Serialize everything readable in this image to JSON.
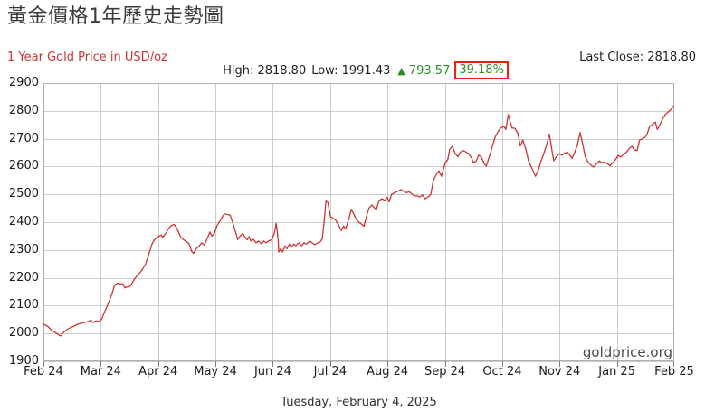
{
  "page": {
    "title": "黃金價格1年歷史走勢圖"
  },
  "header": {
    "subtitle": "1 Year Gold Price in USD/oz",
    "last_close": "Last Close: 2818.80",
    "high_text": "High: 2818.80",
    "low_text": "Low: 1991.43",
    "arrow": "▲",
    "change": "793.57",
    "percent": "39.18%"
  },
  "footer": {
    "watermark": "goldprice.org",
    "date": "Tuesday, February 4, 2025"
  },
  "colors": {
    "line": "#cc3333",
    "grid": "#cccccc",
    "border": "#b0b0b0",
    "tick": "#808080",
    "subtitle_red": "#cc3333",
    "up_green": "#2c8a2c",
    "box_red": "#ee1c0c"
  },
  "chart_data": {
    "type": "line",
    "title": "1 Year Gold Price in USD/oz",
    "ylabel": "USD/oz",
    "ylim": [
      1900,
      2900
    ],
    "y_ticks": [
      2900,
      2800,
      2700,
      2600,
      2500,
      2400,
      2300,
      2200,
      2100,
      2000,
      1900
    ],
    "x_tick_labels": [
      "Feb 24",
      "Mar 24",
      "Apr 24",
      "May 24",
      "Jun 24",
      "Jul 24",
      "Aug 24",
      "Sep 24",
      "Oct 24",
      "Nov 24",
      "Jan 25",
      "Feb 25"
    ],
    "grid": true,
    "legend": "none",
    "high": 2818.8,
    "low": 1991.43,
    "last_close": 2818.8,
    "change_abs": 793.57,
    "change_pct": 39.18,
    "series": [
      {
        "name": "Gold Price USD/oz",
        "points": [
          [
            0,
            2034
          ],
          [
            0.7,
            2025
          ],
          [
            1.3,
            2012
          ],
          [
            1.9,
            2003
          ],
          [
            2.3,
            1997
          ],
          [
            2.7,
            1991
          ],
          [
            3.2,
            2004
          ],
          [
            3.6,
            2012
          ],
          [
            4.2,
            2020
          ],
          [
            4.7,
            2025
          ],
          [
            5.3,
            2032
          ],
          [
            5.9,
            2036
          ],
          [
            6.5,
            2040
          ],
          [
            7,
            2042
          ],
          [
            7.5,
            2048
          ],
          [
            7.9,
            2039
          ],
          [
            8.3,
            2045
          ],
          [
            8.8,
            2043
          ],
          [
            9.2,
            2050
          ],
          [
            9.6,
            2072
          ],
          [
            10,
            2093
          ],
          [
            10.6,
            2126
          ],
          [
            11,
            2153
          ],
          [
            11.3,
            2175
          ],
          [
            11.8,
            2181
          ],
          [
            12.2,
            2178
          ],
          [
            12.6,
            2179
          ],
          [
            12.9,
            2164
          ],
          [
            13.3,
            2167
          ],
          [
            13.8,
            2171
          ],
          [
            14.3,
            2191
          ],
          [
            14.8,
            2207
          ],
          [
            15.4,
            2221
          ],
          [
            15.8,
            2234
          ],
          [
            16.2,
            2250
          ],
          [
            16.6,
            2278
          ],
          [
            16.9,
            2299
          ],
          [
            17.2,
            2321
          ],
          [
            17.6,
            2337
          ],
          [
            18.2,
            2348
          ],
          [
            18.7,
            2354
          ],
          [
            18.9,
            2345
          ],
          [
            19.4,
            2360
          ],
          [
            19.8,
            2376
          ],
          [
            20.2,
            2387
          ],
          [
            20.7,
            2392
          ],
          [
            21.1,
            2380
          ],
          [
            21.4,
            2365
          ],
          [
            21.8,
            2345
          ],
          [
            22.2,
            2337
          ],
          [
            22.7,
            2330
          ],
          [
            23.1,
            2322
          ],
          [
            23.5,
            2295
          ],
          [
            23.8,
            2288
          ],
          [
            24.2,
            2304
          ],
          [
            24.7,
            2315
          ],
          [
            25.1,
            2326
          ],
          [
            25.5,
            2318
          ],
          [
            26,
            2343
          ],
          [
            26.4,
            2365
          ],
          [
            26.7,
            2350
          ],
          [
            27.1,
            2360
          ],
          [
            27.5,
            2387
          ],
          [
            28,
            2405
          ],
          [
            28.4,
            2420
          ],
          [
            28.7,
            2430
          ],
          [
            29.1,
            2428
          ],
          [
            29.6,
            2425
          ],
          [
            30,
            2400
          ],
          [
            30.3,
            2375
          ],
          [
            30.6,
            2354
          ],
          [
            30.8,
            2337
          ],
          [
            31.1,
            2348
          ],
          [
            31.6,
            2360
          ],
          [
            31.9,
            2348
          ],
          [
            32.3,
            2337
          ],
          [
            32.6,
            2348
          ],
          [
            32.9,
            2332
          ],
          [
            33.3,
            2338
          ],
          [
            33.7,
            2326
          ],
          [
            34.1,
            2332
          ],
          [
            34.6,
            2321
          ],
          [
            34.9,
            2332
          ],
          [
            35.3,
            2326
          ],
          [
            35.7,
            2332
          ],
          [
            36.2,
            2337
          ],
          [
            36.6,
            2360
          ],
          [
            36.9,
            2395
          ],
          [
            37.2,
            2340
          ],
          [
            37.3,
            2293
          ],
          [
            37.6,
            2304
          ],
          [
            37.9,
            2293
          ],
          [
            38.3,
            2315
          ],
          [
            38.6,
            2304
          ],
          [
            39,
            2321
          ],
          [
            39.3,
            2310
          ],
          [
            39.7,
            2321
          ],
          [
            40,
            2315
          ],
          [
            40.5,
            2326
          ],
          [
            40.9,
            2315
          ],
          [
            41.3,
            2326
          ],
          [
            41.7,
            2321
          ],
          [
            42.2,
            2332
          ],
          [
            42.6,
            2326
          ],
          [
            43,
            2319
          ],
          [
            43.5,
            2326
          ],
          [
            43.9,
            2330
          ],
          [
            44.2,
            2340
          ],
          [
            44.5,
            2403
          ],
          [
            44.8,
            2480
          ],
          [
            45.1,
            2470
          ],
          [
            45.5,
            2420
          ],
          [
            45.9,
            2414
          ],
          [
            46.3,
            2408
          ],
          [
            46.8,
            2390
          ],
          [
            47.2,
            2370
          ],
          [
            47.6,
            2386
          ],
          [
            47.9,
            2375
          ],
          [
            48.4,
            2410
          ],
          [
            48.8,
            2446
          ],
          [
            49.2,
            2430
          ],
          [
            49.6,
            2410
          ],
          [
            50.1,
            2398
          ],
          [
            50.5,
            2392
          ],
          [
            50.8,
            2385
          ],
          [
            51.2,
            2420
          ],
          [
            51.6,
            2451
          ],
          [
            52.1,
            2462
          ],
          [
            52.5,
            2450
          ],
          [
            52.8,
            2446
          ],
          [
            53.2,
            2478
          ],
          [
            53.7,
            2484
          ],
          [
            54.1,
            2478
          ],
          [
            54.5,
            2489
          ],
          [
            54.8,
            2473
          ],
          [
            55.2,
            2500
          ],
          [
            55.7,
            2506
          ],
          [
            56.2,
            2512
          ],
          [
            56.7,
            2517
          ],
          [
            57.1,
            2511
          ],
          [
            57.5,
            2506
          ],
          [
            58,
            2509
          ],
          [
            58.4,
            2502
          ],
          [
            58.8,
            2495
          ],
          [
            59.3,
            2494
          ],
          [
            59.7,
            2491
          ],
          [
            60.1,
            2498
          ],
          [
            60.5,
            2484
          ],
          [
            61,
            2491
          ],
          [
            61.4,
            2500
          ],
          [
            61.8,
            2549
          ],
          [
            62.3,
            2572
          ],
          [
            62.7,
            2584
          ],
          [
            63.1,
            2565
          ],
          [
            63.7,
            2614
          ],
          [
            64.1,
            2625
          ],
          [
            64.4,
            2662
          ],
          [
            64.8,
            2673
          ],
          [
            65.3,
            2646
          ],
          [
            65.7,
            2635
          ],
          [
            66.1,
            2652
          ],
          [
            66.6,
            2657
          ],
          [
            67,
            2652
          ],
          [
            67.4,
            2646
          ],
          [
            67.9,
            2630
          ],
          [
            68.1,
            2614
          ],
          [
            68.6,
            2619
          ],
          [
            69,
            2641
          ],
          [
            69.4,
            2635
          ],
          [
            69.9,
            2610
          ],
          [
            70.2,
            2601
          ],
          [
            70.6,
            2630
          ],
          [
            70.9,
            2652
          ],
          [
            71.3,
            2684
          ],
          [
            71.7,
            2710
          ],
          [
            72.2,
            2730
          ],
          [
            72.6,
            2740
          ],
          [
            73,
            2744
          ],
          [
            73.3,
            2733
          ],
          [
            73.7,
            2787
          ],
          [
            74,
            2760
          ],
          [
            74.3,
            2738
          ],
          [
            74.7,
            2738
          ],
          [
            75.2,
            2720
          ],
          [
            75.6,
            2674
          ],
          [
            76,
            2695
          ],
          [
            76.5,
            2660
          ],
          [
            76.9,
            2620
          ],
          [
            77.3,
            2600
          ],
          [
            77.8,
            2575
          ],
          [
            78,
            2565
          ],
          [
            78.5,
            2590
          ],
          [
            78.9,
            2620
          ],
          [
            79.3,
            2645
          ],
          [
            79.8,
            2680
          ],
          [
            80.2,
            2717
          ],
          [
            80.6,
            2660
          ],
          [
            80.9,
            2620
          ],
          [
            81.3,
            2635
          ],
          [
            81.8,
            2646
          ],
          [
            82.2,
            2641
          ],
          [
            82.6,
            2648
          ],
          [
            83.1,
            2651
          ],
          [
            83.5,
            2640
          ],
          [
            83.8,
            2630
          ],
          [
            84.2,
            2650
          ],
          [
            84.6,
            2675
          ],
          [
            85.1,
            2722
          ],
          [
            85.5,
            2680
          ],
          [
            85.9,
            2634
          ],
          [
            86.4,
            2614
          ],
          [
            86.8,
            2605
          ],
          [
            87.2,
            2598
          ],
          [
            87.7,
            2610
          ],
          [
            88.1,
            2620
          ],
          [
            88.5,
            2614
          ],
          [
            89,
            2616
          ],
          [
            89.4,
            2610
          ],
          [
            89.8,
            2603
          ],
          [
            90.2,
            2612
          ],
          [
            90.7,
            2625
          ],
          [
            91.1,
            2640
          ],
          [
            91.5,
            2634
          ],
          [
            92,
            2645
          ],
          [
            92.4,
            2651
          ],
          [
            92.8,
            2663
          ],
          [
            93.3,
            2673
          ],
          [
            93.7,
            2660
          ],
          [
            94.1,
            2657
          ],
          [
            94.5,
            2695
          ],
          [
            95,
            2700
          ],
          [
            95.4,
            2706
          ],
          [
            95.7,
            2717
          ],
          [
            96.1,
            2744
          ],
          [
            96.6,
            2752
          ],
          [
            97,
            2760
          ],
          [
            97.3,
            2733
          ],
          [
            97.7,
            2749
          ],
          [
            98.1,
            2770
          ],
          [
            98.6,
            2787
          ],
          [
            99,
            2795
          ],
          [
            99.4,
            2803
          ],
          [
            100,
            2819
          ]
        ]
      }
    ]
  }
}
